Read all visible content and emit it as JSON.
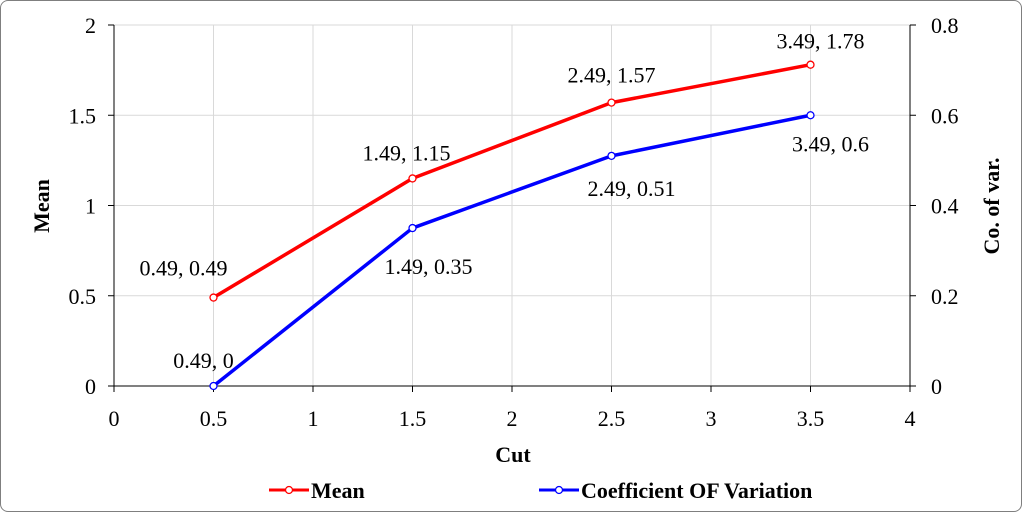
{
  "chart_data": {
    "type": "line",
    "xlabel": "Cut",
    "ylabel": "Mean",
    "y2label": "Co. of var.",
    "xlim": [
      0,
      4
    ],
    "ylim": [
      0,
      2
    ],
    "y2lim": [
      0,
      0.8
    ],
    "xticks": [
      "0",
      "0.5",
      "1",
      "1.5",
      "2",
      "2.5",
      "3",
      "3.5",
      "4"
    ],
    "yticks": [
      "0",
      "0.5",
      "1",
      "1.5",
      "2"
    ],
    "y2ticks": [
      "0",
      "0.2",
      "0.4",
      "0.6",
      "0.8"
    ],
    "grid": true,
    "legend_position": "bottom",
    "series": [
      {
        "name": "Mean",
        "axis": "left",
        "color": "#ff0000",
        "x": [
          0.5,
          1.5,
          2.5,
          3.5
        ],
        "y": [
          0.49,
          1.15,
          1.57,
          1.78
        ],
        "labels": [
          "0.49, 0.49",
          "1.49, 1.15",
          "2.49, 1.57",
          "3.49, 1.78"
        ]
      },
      {
        "name": "Coefficient OF Variation",
        "axis": "right",
        "color": "#0000ff",
        "x": [
          0.5,
          1.5,
          2.5,
          3.5
        ],
        "y": [
          0,
          0.35,
          0.51,
          0.6
        ],
        "labels": [
          "0.49, 0",
          "1.49, 0.35",
          "2.49, 0.51",
          "3.49, 0.6"
        ]
      }
    ]
  }
}
